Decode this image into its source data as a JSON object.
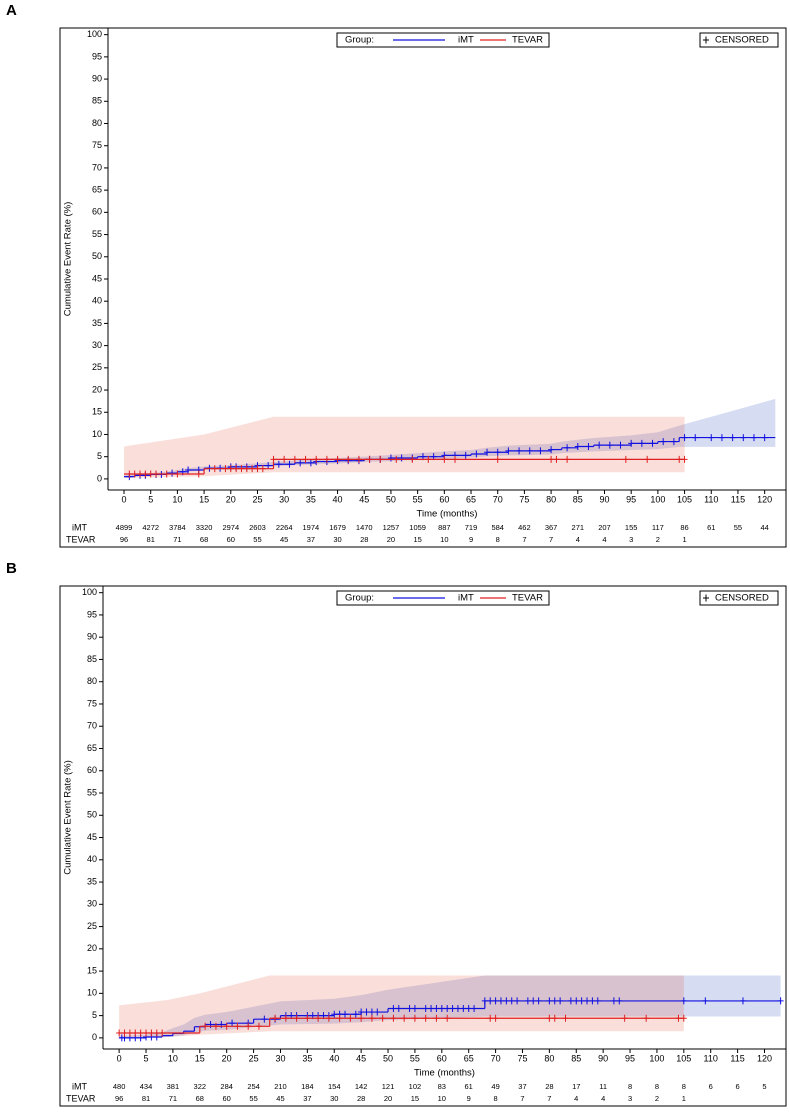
{
  "chart_data": [
    {
      "type": "step",
      "panel_label": "A",
      "xlabel": "Time (months)",
      "ylabel": "Cumulative Event Rate (%)",
      "legend_title": "Group:",
      "censor_label": "CENSORED",
      "xlim": [
        -3,
        124
      ],
      "ylim": [
        -2.5,
        101.5
      ],
      "xticks": [
        0,
        5,
        10,
        15,
        20,
        25,
        30,
        35,
        40,
        45,
        50,
        55,
        60,
        65,
        70,
        75,
        80,
        85,
        90,
        95,
        100,
        105,
        110,
        115,
        120
      ],
      "yticks": [
        0,
        5,
        10,
        15,
        20,
        25,
        30,
        35,
        40,
        45,
        50,
        55,
        60,
        65,
        70,
        75,
        80,
        85,
        90,
        95,
        100
      ],
      "series": [
        {
          "name": "iMT",
          "color": "#1010e0",
          "band_color": "#3050c0",
          "x": [
            0,
            2,
            5,
            8,
            10,
            12,
            15,
            20,
            25,
            28,
            32,
            36,
            40,
            45,
            50,
            55,
            60,
            65,
            68,
            72,
            80,
            82,
            85,
            88,
            95,
            100,
            104,
            122
          ],
          "values": [
            0.5,
            0.8,
            1.0,
            1.3,
            1.6,
            2.0,
            2.4,
            2.7,
            3.0,
            3.3,
            3.6,
            3.9,
            4.1,
            4.4,
            4.7,
            5.0,
            5.3,
            5.6,
            6.0,
            6.3,
            6.6,
            7.0,
            7.3,
            7.6,
            8.0,
            8.4,
            9.3,
            9.3
          ],
          "lower": [
            0.3,
            0.5,
            0.7,
            1.0,
            1.2,
            1.6,
            2.0,
            2.3,
            2.5,
            2.8,
            3.1,
            3.3,
            3.5,
            3.8,
            4.0,
            4.3,
            4.5,
            4.8,
            5.1,
            5.3,
            5.5,
            5.8,
            6.0,
            6.2,
            6.5,
            6.7,
            7.2,
            7.2
          ],
          "upper": [
            0.8,
            1.1,
            1.3,
            1.6,
            2.0,
            2.4,
            2.8,
            3.1,
            3.5,
            3.8,
            4.1,
            4.5,
            4.7,
            5.0,
            5.4,
            5.8,
            6.2,
            6.5,
            7.0,
            7.5,
            7.9,
            8.4,
            8.8,
            9.2,
            9.8,
            10.5,
            12.0,
            18.0
          ],
          "censor_x": [
            1,
            3,
            4,
            6,
            7,
            9,
            11,
            12,
            14,
            16,
            18,
            20,
            21,
            23,
            25,
            27,
            29,
            31,
            33,
            35,
            36,
            38,
            40,
            42,
            44,
            46,
            48,
            50,
            52,
            54,
            56,
            58,
            60,
            62,
            64,
            66,
            68,
            70,
            72,
            74,
            76,
            78,
            80,
            83,
            85,
            87,
            89,
            91,
            93,
            95,
            97,
            99,
            101,
            103,
            105,
            107,
            110,
            112,
            114,
            116,
            118,
            120
          ],
          "at_risk": [
            4899,
            4272,
            3784,
            3320,
            2974,
            2603,
            2264,
            1974,
            1679,
            1470,
            1257,
            1059,
            887,
            719,
            584,
            462,
            367,
            271,
            207,
            155,
            117,
            86,
            61,
            55,
            44
          ]
        },
        {
          "name": "TEVAR",
          "color": "#e02020",
          "band_color": "#e05848",
          "x": [
            0,
            15,
            28,
            105
          ],
          "values": [
            1.1,
            2.3,
            4.4,
            4.4
          ],
          "lower": [
            0.2,
            0.6,
            1.5,
            1.5
          ],
          "upper": [
            7.3,
            10.0,
            14.0,
            14.0
          ],
          "censor_x": [
            1,
            2,
            3,
            4,
            5,
            6,
            8,
            10,
            14,
            17,
            19,
            20,
            21,
            22,
            23,
            24,
            25,
            26,
            28,
            30,
            32,
            34,
            36,
            38,
            40,
            42,
            44,
            46,
            48,
            51,
            54,
            57,
            60,
            62,
            70,
            80,
            81,
            83,
            94,
            98,
            104,
            105
          ],
          "at_risk": [
            96,
            81,
            71,
            68,
            60,
            55,
            45,
            37,
            30,
            28,
            20,
            15,
            10,
            9,
            8,
            7,
            7,
            4,
            4,
            3,
            2,
            1
          ]
        }
      ]
    },
    {
      "type": "step",
      "panel_label": "B",
      "xlabel": "Time (months)",
      "ylabel": "Cumulative Event Rate (%)",
      "legend_title": "Group:",
      "censor_label": "CENSORED",
      "xlim": [
        -3,
        124
      ],
      "ylim": [
        -2.5,
        101.5
      ],
      "xticks": [
        0,
        5,
        10,
        15,
        20,
        25,
        30,
        35,
        40,
        45,
        50,
        55,
        60,
        65,
        70,
        75,
        80,
        85,
        90,
        95,
        100,
        105,
        110,
        115,
        120
      ],
      "yticks": [
        0,
        5,
        10,
        15,
        20,
        25,
        30,
        35,
        40,
        45,
        50,
        55,
        60,
        65,
        70,
        75,
        80,
        85,
        90,
        95,
        100
      ],
      "series": [
        {
          "name": "iMT",
          "color": "#1010e0",
          "band_color": "#3050c0",
          "x": [
            0,
            5,
            8,
            10,
            12,
            14,
            16,
            20,
            25,
            30,
            40,
            45,
            50,
            68,
            123
          ],
          "values": [
            0,
            0.2,
            0.5,
            1.0,
            1.5,
            2.5,
            3.0,
            3.3,
            4.2,
            5.0,
            5.3,
            5.8,
            6.6,
            8.3,
            8.3
          ],
          "lower": [
            0,
            0,
            0.1,
            0.3,
            0.6,
            1.2,
            1.6,
            1.8,
            2.4,
            3.0,
            3.2,
            3.5,
            4.0,
            4.8,
            4.8
          ],
          "upper": [
            0.4,
            0.7,
            1.3,
            2.2,
            3.0,
            4.5,
            5.2,
            5.8,
            7.0,
            8.2,
            8.8,
            9.6,
            10.8,
            14.0,
            14.0
          ],
          "censor_x": [
            0.5,
            1,
            2,
            3,
            4,
            5,
            6,
            7,
            17,
            19,
            21,
            24,
            27,
            29,
            31,
            32,
            33,
            35,
            36,
            37,
            38,
            39,
            40,
            41,
            42,
            44,
            45,
            46,
            47,
            48,
            51,
            52,
            54,
            55,
            57,
            58,
            59,
            60,
            61,
            62,
            63,
            64,
            65,
            66,
            68,
            69,
            70,
            71,
            72,
            73,
            74,
            76,
            77,
            78,
            80,
            81,
            82,
            84,
            85,
            86,
            87,
            88,
            89,
            92,
            93,
            105,
            109,
            116,
            123
          ],
          "at_risk": [
            480,
            434,
            381,
            322,
            284,
            254,
            210,
            184,
            154,
            142,
            121,
            102,
            83,
            61,
            49,
            37,
            28,
            17,
            11,
            8,
            8,
            8,
            6,
            6,
            5
          ]
        },
        {
          "name": "TEVAR",
          "color": "#e02020",
          "band_color": "#e05848",
          "x": [
            0,
            9,
            15,
            28,
            105
          ],
          "values": [
            1.1,
            1.1,
            2.6,
            4.4,
            4.4
          ],
          "lower": [
            0.2,
            0.2,
            0.7,
            1.5,
            1.5
          ],
          "upper": [
            7.3,
            8.5,
            10.0,
            14.0,
            14.0
          ],
          "censor_x": [
            0,
            1,
            2,
            3,
            4,
            5,
            6,
            7,
            8,
            16,
            18,
            20,
            22,
            24,
            26,
            29,
            31,
            33,
            35,
            37,
            39,
            41,
            43,
            45,
            47,
            49,
            51,
            53,
            55,
            57,
            59,
            61,
            69,
            70,
            80,
            81,
            83,
            94,
            98,
            104,
            105
          ],
          "at_risk": [
            96,
            81,
            71,
            68,
            60,
            55,
            45,
            37,
            30,
            28,
            20,
            15,
            10,
            9,
            8,
            7,
            7,
            4,
            4,
            3,
            2,
            1
          ]
        }
      ]
    }
  ]
}
